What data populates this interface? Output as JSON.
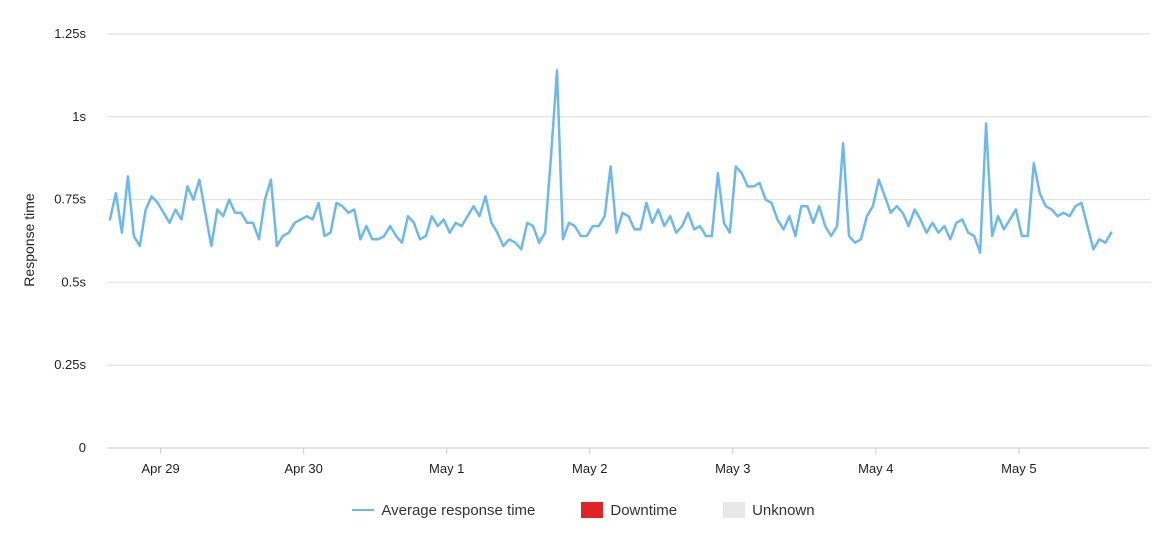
{
  "chart_data": {
    "type": "line",
    "ylabel": "Response time",
    "y_ticks": [
      {
        "value": 0,
        "label": "0"
      },
      {
        "value": 0.25,
        "label": "0.25s"
      },
      {
        "value": 0.5,
        "label": "0.5s"
      },
      {
        "value": 0.75,
        "label": "0.75s"
      },
      {
        "value": 1.0,
        "label": "1s"
      },
      {
        "value": 1.25,
        "label": "1.25s"
      }
    ],
    "ylim": [
      0,
      1.25
    ],
    "xlim": [
      "Apr 28 15:00",
      "May 5 22:00"
    ],
    "x_ticks": [
      "Apr 29",
      "Apr 30",
      "May 1",
      "May 2",
      "May 3",
      "May 4",
      "May 5"
    ],
    "grid": true,
    "legend_position": "bottom-center",
    "series": [
      {
        "name": "Average response time",
        "color": "#6cb8f0",
        "x_start": "Apr 28 15:30",
        "x_step": "1 hour",
        "values": [
          0.69,
          0.77,
          0.65,
          0.82,
          0.64,
          0.61,
          0.72,
          0.76,
          0.74,
          0.71,
          0.68,
          0.72,
          0.69,
          0.79,
          0.75,
          0.81,
          0.71,
          0.61,
          0.72,
          0.7,
          0.75,
          0.71,
          0.71,
          0.68,
          0.68,
          0.63,
          0.75,
          0.81,
          0.61,
          0.64,
          0.65,
          0.68,
          0.69,
          0.7,
          0.69,
          0.74,
          0.64,
          0.65,
          0.74,
          0.73,
          0.71,
          0.72,
          0.63,
          0.67,
          0.63,
          0.63,
          0.64,
          0.67,
          0.64,
          0.62,
          0.7,
          0.68,
          0.63,
          0.64,
          0.7,
          0.67,
          0.69,
          0.65,
          0.68,
          0.67,
          0.7,
          0.73,
          0.7,
          0.76,
          0.68,
          0.65,
          0.61,
          0.63,
          0.62,
          0.6,
          0.68,
          0.67,
          0.62,
          0.65,
          0.88,
          1.14,
          0.63,
          0.68,
          0.67,
          0.64,
          0.64,
          0.67,
          0.67,
          0.7,
          0.85,
          0.65,
          0.71,
          0.7,
          0.66,
          0.66,
          0.74,
          0.68,
          0.72,
          0.67,
          0.7,
          0.65,
          0.67,
          0.71,
          0.66,
          0.67,
          0.64,
          0.64,
          0.83,
          0.68,
          0.65,
          0.85,
          0.83,
          0.79,
          0.79,
          0.8,
          0.75,
          0.74,
          0.69,
          0.66,
          0.7,
          0.64,
          0.73,
          0.73,
          0.68,
          0.73,
          0.67,
          0.64,
          0.67,
          0.92,
          0.64,
          0.62,
          0.63,
          0.7,
          0.73,
          0.81,
          0.76,
          0.71,
          0.73,
          0.71,
          0.67,
          0.72,
          0.69,
          0.65,
          0.68,
          0.65,
          0.67,
          0.63,
          0.68,
          0.69,
          0.65,
          0.64,
          0.59,
          0.98,
          0.64,
          0.7,
          0.66,
          0.69,
          0.72,
          0.64,
          0.64,
          0.86,
          0.77,
          0.73,
          0.72,
          0.7,
          0.71,
          0.7,
          0.73,
          0.74,
          0.67,
          0.6,
          0.63,
          0.62,
          0.65
        ]
      }
    ]
  },
  "legend": {
    "items": [
      {
        "label": "Average response time",
        "color": "#6cb8f0"
      },
      {
        "label": "Downtime",
        "color": "#e02424"
      },
      {
        "label": "Unknown",
        "color": "#e8e8e8"
      }
    ]
  }
}
